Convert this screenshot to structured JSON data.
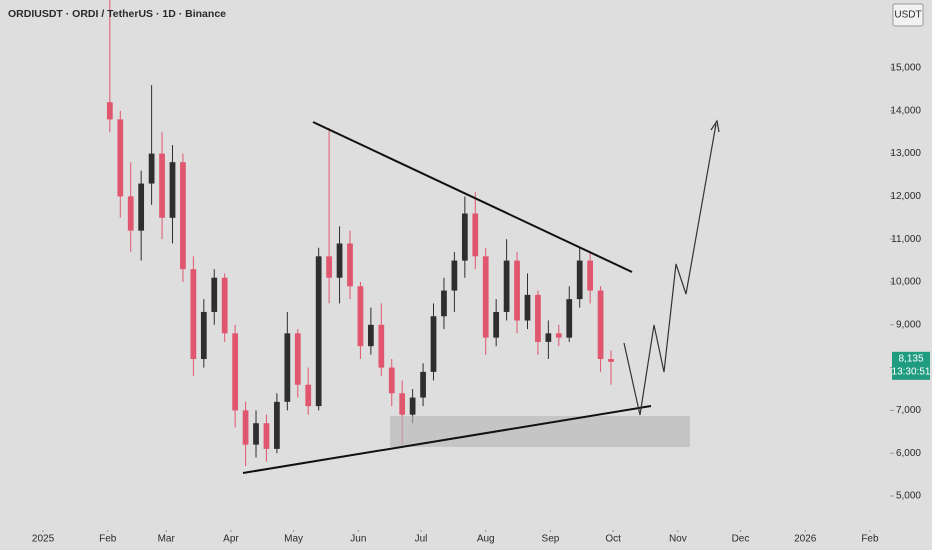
{
  "chart_data": {
    "type": "candlestick",
    "title": "ORDIUSDT · ORDI / TetherUS · 1D · Binance",
    "currency": "USDT",
    "up_color": "#2e2e2e",
    "down_color": "#e0566e",
    "x": [
      32,
      37,
      42,
      47,
      52,
      57,
      62,
      67,
      72,
      77,
      82,
      87,
      92,
      97,
      102,
      107,
      112,
      117,
      122,
      127,
      132,
      137,
      142,
      147,
      152,
      157,
      162,
      167,
      172,
      177,
      182,
      187,
      192,
      197,
      202,
      207,
      212,
      217,
      222,
      227,
      232,
      237,
      242,
      247,
      252,
      257,
      262,
      267,
      272
    ],
    "open": [
      14200,
      13800,
      12000,
      11200,
      12300,
      13000,
      11500,
      12800,
      10300,
      8200,
      9300,
      10100,
      8800,
      7000,
      6200,
      6700,
      6100,
      7200,
      8800,
      7600,
      7100,
      10600,
      10100,
      10900,
      9900,
      8500,
      9000,
      8000,
      7400,
      6900,
      7300,
      7900,
      9200,
      9800,
      10500,
      11600,
      10600,
      8700,
      9300,
      10500,
      9100,
      9700,
      8600,
      8800,
      8700,
      9600,
      10500,
      9800,
      8200
    ],
    "high": [
      16600,
      14000,
      12800,
      12600,
      14600,
      13500,
      13200,
      13000,
      10600,
      9600,
      10300,
      10200,
      9000,
      7200,
      7000,
      6900,
      7400,
      9300,
      8900,
      8000,
      10800,
      13600,
      11300,
      11200,
      10000,
      9400,
      9500,
      8200,
      7700,
      7500,
      8100,
      9500,
      10100,
      10700,
      12000,
      12100,
      10800,
      9600,
      11000,
      10700,
      10200,
      9800,
      9100,
      9000,
      9900,
      10800,
      10700,
      9900,
      8400
    ],
    "low": [
      13500,
      11500,
      10700,
      10500,
      11800,
      11000,
      10900,
      10000,
      7800,
      8000,
      9000,
      8600,
      6600,
      5700,
      5900,
      5800,
      6000,
      7000,
      7300,
      6900,
      7000,
      9500,
      9500,
      9600,
      8200,
      8300,
      7800,
      7100,
      6200,
      6700,
      7100,
      7700,
      8900,
      9300,
      10100,
      10300,
      8300,
      8500,
      9100,
      8800,
      8900,
      8300,
      8200,
      8500,
      8600,
      9400,
      9500,
      7900,
      7600
    ],
    "close": [
      13800,
      12000,
      11200,
      12300,
      13000,
      11500,
      12800,
      10300,
      8200,
      9300,
      10100,
      8800,
      7000,
      6200,
      6700,
      6100,
      7200,
      8800,
      7600,
      7100,
      10600,
      10100,
      10900,
      9900,
      8500,
      9000,
      8000,
      7400,
      6900,
      7300,
      7900,
      9200,
      9800,
      10500,
      11600,
      10600,
      8700,
      9300,
      10500,
      9100,
      9700,
      8600,
      8800,
      8700,
      9600,
      10500,
      9800,
      8200,
      8135
    ],
    "xlim": [
      -20.6,
      405.6
    ],
    "xticks": [
      {
        "value": 0,
        "label": "2025"
      },
      {
        "value": 31,
        "label": "Feb"
      },
      {
        "value": 59,
        "label": "Mar"
      },
      {
        "value": 90,
        "label": "Apr"
      },
      {
        "value": 120,
        "label": "May"
      },
      {
        "value": 151,
        "label": "Jun"
      },
      {
        "value": 181,
        "label": "Jul"
      },
      {
        "value": 212,
        "label": "Aug"
      },
      {
        "value": 243,
        "label": "Sep"
      },
      {
        "value": 273,
        "label": "Oct"
      },
      {
        "value": 304,
        "label": "Nov"
      },
      {
        "value": 334,
        "label": "Dec"
      },
      {
        "value": 365,
        "label": "2026"
      },
      {
        "value": 396,
        "label": "Feb"
      }
    ],
    "ylim": [
      4252,
      16589
    ],
    "yticks": [
      {
        "value": 15000,
        "label": "15,000"
      },
      {
        "value": 14000,
        "label": "14,000"
      },
      {
        "value": 13000,
        "label": "13,000"
      },
      {
        "value": 12000,
        "label": "12,000"
      },
      {
        "value": 11000,
        "label": "11,000"
      },
      {
        "value": 10000,
        "label": "10,000"
      },
      {
        "value": 9000,
        "label": "9,000"
      },
      {
        "value": 8000,
        "label": "8,000"
      },
      {
        "value": 7000,
        "label": "7,000"
      },
      {
        "value": 6000,
        "label": "6,000"
      },
      {
        "value": 5000,
        "label": "5,000"
      }
    ],
    "last_price": {
      "value": 8135,
      "label": "8,135"
    },
    "last_price_color": "#1f9c80",
    "countdown": "13:30:51"
  }
}
